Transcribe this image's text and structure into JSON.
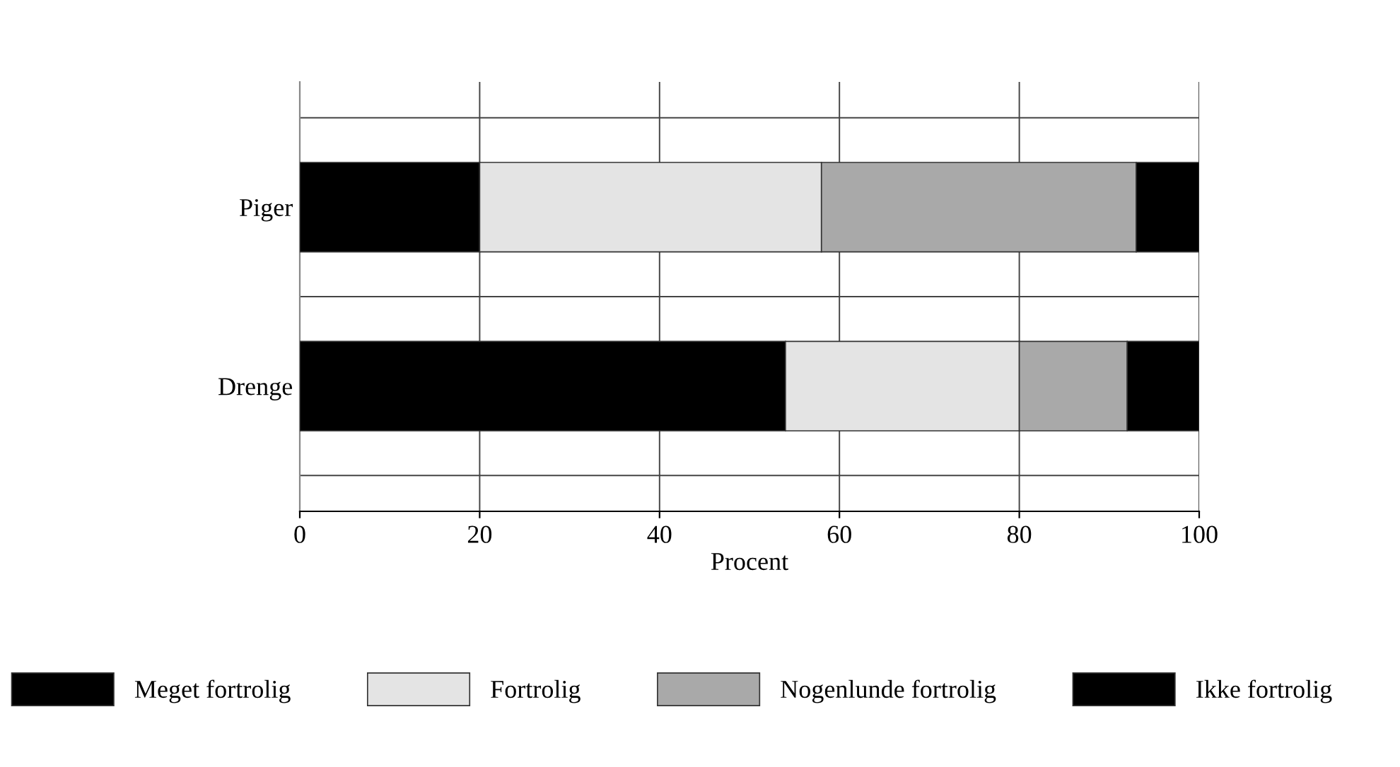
{
  "chart_data": {
    "type": "bar",
    "orientation": "horizontal",
    "stacked": true,
    "categories": [
      "Piger",
      "Drenge"
    ],
    "xlabel": "Procent",
    "xlim": [
      0,
      100
    ],
    "xticks": [
      0,
      20,
      40,
      60,
      80,
      100
    ],
    "grid": true,
    "legend": "bottom",
    "series": [
      {
        "name": "Meget fortrolig",
        "color": "#000000",
        "values": [
          20,
          54
        ]
      },
      {
        "name": "Fortrolig",
        "color": "#e4e4e4",
        "values": [
          38,
          26
        ]
      },
      {
        "name": "Nogenlunde fortrolig",
        "color": "#a9a9a9",
        "values": [
          35,
          12
        ]
      },
      {
        "name": "Ikke fortrolig",
        "color": "#000000",
        "values": [
          7,
          8
        ]
      }
    ]
  }
}
